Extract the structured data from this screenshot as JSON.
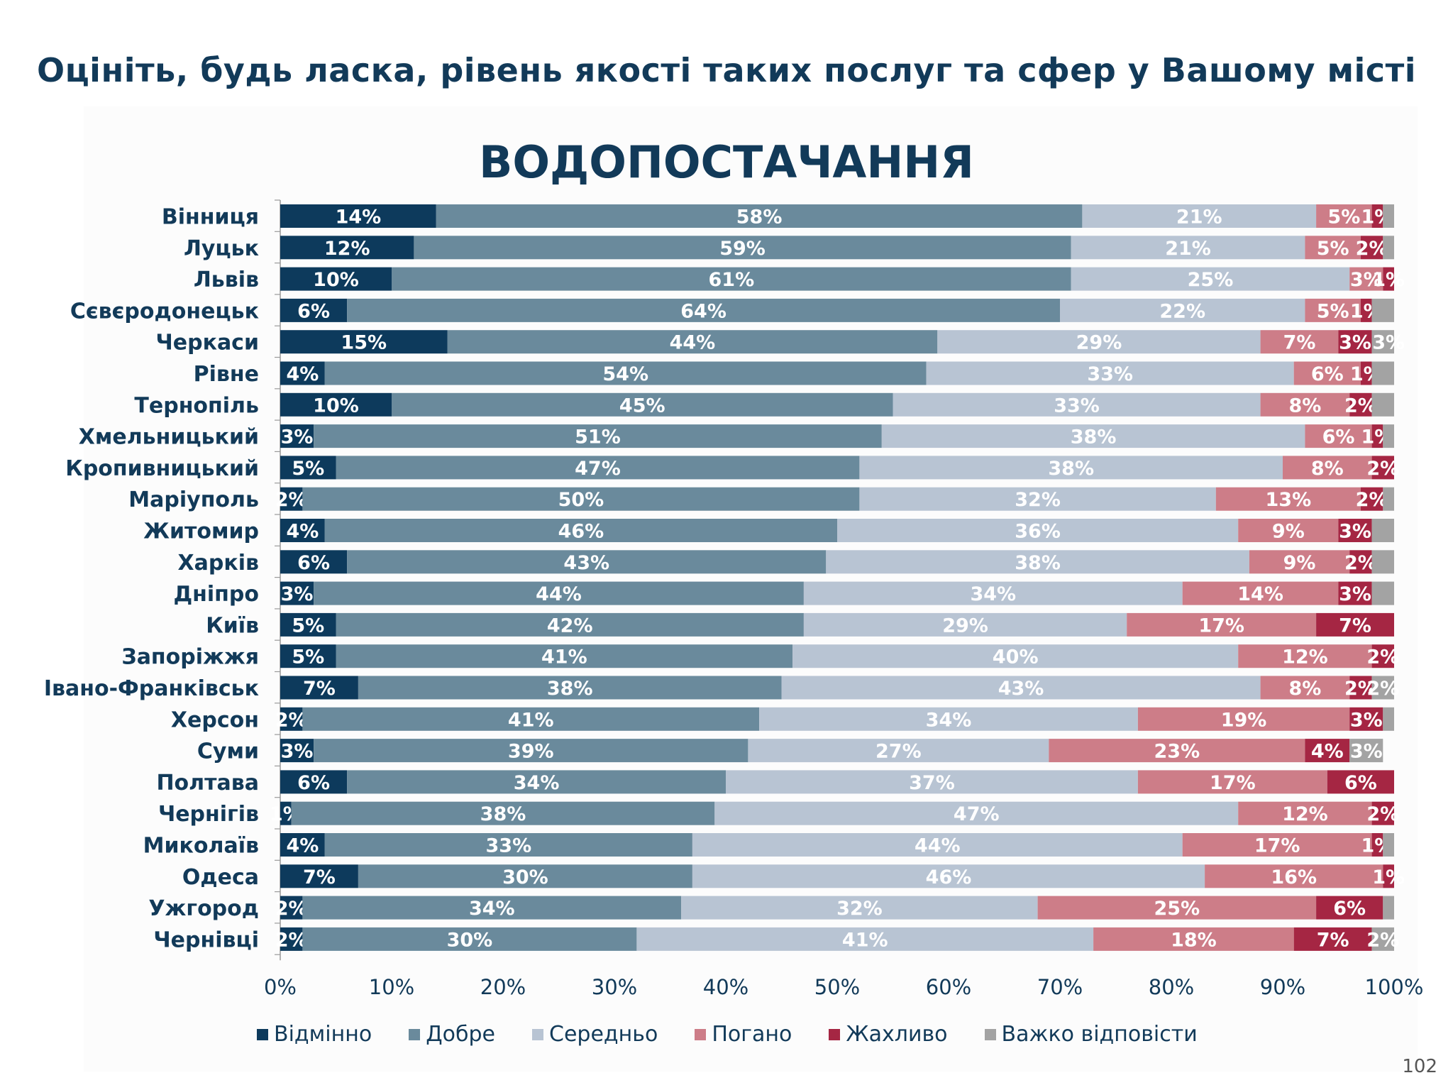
{
  "page": {
    "title": "Оцініть, будь ласка, рівень якості таких послуг та сфер у Вашому місті",
    "page_number": "102"
  },
  "chart_data": {
    "type": "bar",
    "orientation": "horizontal",
    "stacked": true,
    "title": "ВОДОПОСТАЧАННЯ",
    "xlim": [
      0,
      100
    ],
    "x_ticks": [
      "0%",
      "10%",
      "20%",
      "30%",
      "40%",
      "50%",
      "60%",
      "70%",
      "80%",
      "90%",
      "100%"
    ],
    "legend_position": "bottom",
    "categories": [
      "Вінниця",
      "Луцьк",
      "Львів",
      "Сєвєродонецьк",
      "Черкаси",
      "Рівне",
      "Тернопіль",
      "Хмельницький",
      "Кропивницький",
      "Маріуполь",
      "Житомир",
      "Харків",
      "Дніпро",
      "Київ",
      "Запоріжжя",
      "Івано-Франківськ",
      "Херсон",
      "Суми",
      "Полтава",
      "Чернігів",
      "Миколаїв",
      "Одеса",
      "Ужгород",
      "Чернівці"
    ],
    "series": [
      {
        "name": "Відмінно",
        "color": "#0d3a5c",
        "label_color": "#ffffff",
        "values": [
          14,
          12,
          10,
          6,
          15,
          4,
          10,
          3,
          5,
          2,
          4,
          6,
          3,
          5,
          5,
          7,
          2,
          3,
          6,
          1,
          4,
          7,
          2,
          2
        ]
      },
      {
        "name": "Добре",
        "color": "#6a8a9c",
        "label_color": "#ffffff",
        "values": [
          58,
          59,
          61,
          64,
          44,
          54,
          45,
          51,
          47,
          50,
          46,
          43,
          44,
          42,
          41,
          38,
          41,
          39,
          34,
          38,
          33,
          30,
          34,
          30
        ]
      },
      {
        "name": "Середньо",
        "color": "#b8c4d3",
        "label_color": "#ffffff",
        "values": [
          21,
          21,
          25,
          22,
          29,
          33,
          33,
          38,
          38,
          32,
          36,
          38,
          34,
          29,
          40,
          43,
          34,
          27,
          37,
          47,
          44,
          46,
          32,
          41
        ]
      },
      {
        "name": "Погано",
        "color": "#cd7d88",
        "label_color": "#ffffff",
        "values": [
          5,
          5,
          3,
          5,
          7,
          6,
          8,
          6,
          8,
          13,
          9,
          9,
          14,
          17,
          12,
          8,
          19,
          23,
          17,
          12,
          17,
          16,
          25,
          18
        ]
      },
      {
        "name": "Жахливо",
        "color": "#a52643",
        "label_color": "#ffffff",
        "values": [
          1,
          2,
          1,
          1,
          3,
          1,
          2,
          1,
          2,
          2,
          3,
          2,
          3,
          7,
          2,
          2,
          3,
          4,
          6,
          2,
          1,
          1,
          6,
          7
        ]
      },
      {
        "name": "Важко відповісти",
        "color": "#a3a3a3",
        "label_color": "#ffffff",
        "values": [
          1,
          1,
          0,
          2,
          3,
          2,
          2,
          1,
          0,
          1,
          2,
          2,
          2,
          0,
          0,
          2,
          1,
          3,
          1,
          0,
          1,
          0,
          1,
          2
        ]
      }
    ],
    "data_labels": [
      [
        "14%",
        "58%",
        "21%",
        "5%",
        "1%",
        ""
      ],
      [
        "12%",
        "59%",
        "21%",
        "5%",
        "2%",
        ""
      ],
      [
        "10%",
        "61%",
        "25%",
        "3%",
        "1%",
        ""
      ],
      [
        "6%",
        "64%",
        "22%",
        "5%",
        "1%",
        ""
      ],
      [
        "15%",
        "44%",
        "29%",
        "7%",
        "3%",
        "3%"
      ],
      [
        "4%",
        "54%",
        "33%",
        "6%",
        "1%",
        ""
      ],
      [
        "10%",
        "45%",
        "33%",
        "8%",
        "2%",
        ""
      ],
      [
        "3%",
        "51%",
        "38%",
        "6%",
        "1%",
        ""
      ],
      [
        "5%",
        "47%",
        "38%",
        "8%",
        "2%",
        ""
      ],
      [
        "2%",
        "50%",
        "32%",
        "13%",
        "2%",
        ""
      ],
      [
        "4%",
        "46%",
        "36%",
        "9%",
        "3%",
        ""
      ],
      [
        "6%",
        "43%",
        "38%",
        "9%",
        "2%",
        ""
      ],
      [
        "3%",
        "44%",
        "34%",
        "14%",
        "3%",
        ""
      ],
      [
        "5%",
        "42%",
        "29%",
        "17%",
        "7%",
        ""
      ],
      [
        "5%",
        "41%",
        "40%",
        "12%",
        "2%",
        ""
      ],
      [
        "7%",
        "38%",
        "43%",
        "8%",
        "2%",
        "2%"
      ],
      [
        "2%",
        "41%",
        "34%",
        "19%",
        "3%",
        ""
      ],
      [
        "3%",
        "39%",
        "27%",
        "23%",
        "4%",
        "3%"
      ],
      [
        "6%",
        "34%",
        "37%",
        "17%",
        "6%",
        ""
      ],
      [
        "1%",
        "38%",
        "47%",
        "12%",
        "2%",
        ""
      ],
      [
        "4%",
        "33%",
        "44%",
        "17%",
        "1%",
        ""
      ],
      [
        "7%",
        "30%",
        "46%",
        "16%",
        "1%",
        ""
      ],
      [
        "2%",
        "34%",
        "32%",
        "25%",
        "6%",
        ""
      ],
      [
        "2%",
        "30%",
        "41%",
        "18%",
        "7%",
        "2%"
      ]
    ]
  }
}
